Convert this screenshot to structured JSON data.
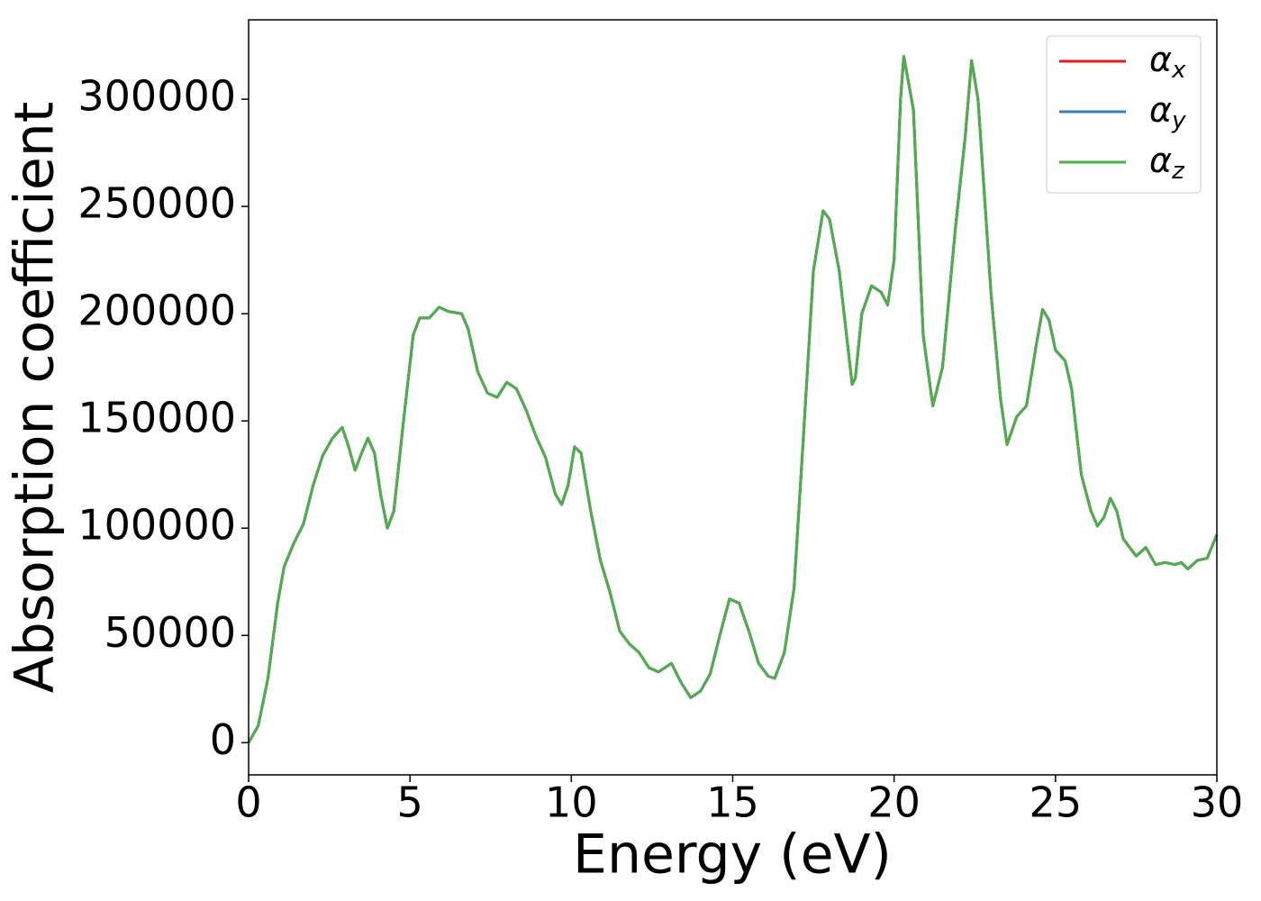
{
  "chart_data": {
    "type": "line",
    "xlabel": "Energy (eV)",
    "ylabel": "Absorption coefficient",
    "x": [
      0,
      0.3,
      0.6,
      0.9,
      1.1,
      1.4,
      1.7,
      2.0,
      2.3,
      2.6,
      2.9,
      3.1,
      3.3,
      3.5,
      3.7,
      3.9,
      4.1,
      4.3,
      4.5,
      4.8,
      5.1,
      5.3,
      5.6,
      5.9,
      6.2,
      6.6,
      6.8,
      7.1,
      7.4,
      7.7,
      8.0,
      8.3,
      8.6,
      8.9,
      9.2,
      9.5,
      9.7,
      9.9,
      10.1,
      10.3,
      10.6,
      10.9,
      11.2,
      11.5,
      11.8,
      12.1,
      12.4,
      12.7,
      13.1,
      13.4,
      13.7,
      14.0,
      14.3,
      14.6,
      14.9,
      15.2,
      15.5,
      15.8,
      16.1,
      16.3,
      16.6,
      16.9,
      17.2,
      17.5,
      17.8,
      18.0,
      18.3,
      18.7,
      18.8,
      19.0,
      19.3,
      19.6,
      19.8,
      20.0,
      20.2,
      20.3,
      20.6,
      20.9,
      21.2,
      21.5,
      21.9,
      22.2,
      22.4,
      22.6,
      23.0,
      23.3,
      23.5,
      23.8,
      24.1,
      24.4,
      24.6,
      24.8,
      25.0,
      25.3,
      25.5,
      25.8,
      26.1,
      26.3,
      26.5,
      26.7,
      26.9,
      27.1,
      27.5,
      27.8,
      28.1,
      28.4,
      28.7,
      28.9,
      29.1,
      29.4,
      29.7,
      30
    ],
    "series": [
      {
        "name": "αx",
        "color": "#e41a1c",
        "values": [
          0,
          8000,
          30000,
          65000,
          82000,
          93000,
          102000,
          120000,
          134000,
          142000,
          147000,
          138000,
          127000,
          135000,
          142000,
          135000,
          115000,
          100000,
          108000,
          150000,
          190000,
          198000,
          198000,
          203000,
          201000,
          200000,
          193000,
          173000,
          163000,
          161000,
          168000,
          165000,
          155000,
          143000,
          133000,
          116000,
          111000,
          120000,
          138000,
          135000,
          108000,
          85000,
          70000,
          52000,
          46000,
          42000,
          35000,
          33000,
          37000,
          28000,
          21000,
          24000,
          32000,
          50000,
          67000,
          65000,
          52000,
          37000,
          31000,
          30000,
          42000,
          72000,
          145000,
          220000,
          248000,
          244000,
          220000,
          167000,
          170000,
          200000,
          213000,
          210000,
          204000,
          225000,
          300000,
          320000,
          295000,
          190000,
          157000,
          175000,
          240000,
          282000,
          318000,
          300000,
          210000,
          160000,
          139000,
          152000,
          157000,
          185000,
          202000,
          197000,
          183000,
          178000,
          165000,
          125000,
          108000,
          101000,
          105000,
          114000,
          108000,
          95000,
          87000,
          91000,
          83000,
          84000,
          83000,
          84000,
          81000,
          85000,
          86000,
          97000
        ]
      },
      {
        "name": "αy",
        "color": "#377eb8",
        "values": [
          0,
          8000,
          30000,
          65000,
          82000,
          93000,
          102000,
          120000,
          134000,
          142000,
          147000,
          138000,
          127000,
          135000,
          142000,
          135000,
          115000,
          100000,
          108000,
          150000,
          190000,
          198000,
          198000,
          203000,
          201000,
          200000,
          193000,
          173000,
          163000,
          161000,
          168000,
          165000,
          155000,
          143000,
          133000,
          116000,
          111000,
          120000,
          138000,
          135000,
          108000,
          85000,
          70000,
          52000,
          46000,
          42000,
          35000,
          33000,
          37000,
          28000,
          21000,
          24000,
          32000,
          50000,
          67000,
          65000,
          52000,
          37000,
          31000,
          30000,
          42000,
          72000,
          145000,
          220000,
          248000,
          244000,
          220000,
          167000,
          170000,
          200000,
          213000,
          210000,
          204000,
          225000,
          300000,
          320000,
          295000,
          190000,
          157000,
          175000,
          240000,
          282000,
          318000,
          300000,
          210000,
          160000,
          139000,
          152000,
          157000,
          185000,
          202000,
          197000,
          183000,
          178000,
          165000,
          125000,
          108000,
          101000,
          105000,
          114000,
          108000,
          95000,
          87000,
          91000,
          83000,
          84000,
          83000,
          84000,
          81000,
          85000,
          86000,
          97000
        ]
      },
      {
        "name": "αz",
        "color": "#4daf4a",
        "values": [
          0,
          8000,
          30000,
          65000,
          82000,
          93000,
          102000,
          120000,
          134000,
          142000,
          147000,
          138000,
          127000,
          135000,
          142000,
          135000,
          115000,
          100000,
          108000,
          150000,
          190000,
          198000,
          198000,
          203000,
          201000,
          200000,
          193000,
          173000,
          163000,
          161000,
          168000,
          165000,
          155000,
          143000,
          133000,
          116000,
          111000,
          120000,
          138000,
          135000,
          108000,
          85000,
          70000,
          52000,
          46000,
          42000,
          35000,
          33000,
          37000,
          28000,
          21000,
          24000,
          32000,
          50000,
          67000,
          65000,
          52000,
          37000,
          31000,
          30000,
          42000,
          72000,
          145000,
          220000,
          248000,
          244000,
          220000,
          167000,
          170000,
          200000,
          213000,
          210000,
          204000,
          225000,
          300000,
          320000,
          295000,
          190000,
          157000,
          175000,
          240000,
          282000,
          318000,
          300000,
          210000,
          160000,
          139000,
          152000,
          157000,
          185000,
          202000,
          197000,
          183000,
          178000,
          165000,
          125000,
          108000,
          101000,
          105000,
          114000,
          108000,
          95000,
          87000,
          91000,
          83000,
          84000,
          83000,
          84000,
          81000,
          85000,
          86000,
          97000
        ]
      }
    ],
    "xlim": [
      0,
      30
    ],
    "xticks": [
      0,
      5,
      10,
      15,
      20,
      25,
      30
    ],
    "ylim": [
      -15000,
      337000
    ],
    "yticks": [
      0,
      50000,
      100000,
      150000,
      200000,
      250000,
      300000
    ],
    "grid": false,
    "legend": "upper right"
  }
}
